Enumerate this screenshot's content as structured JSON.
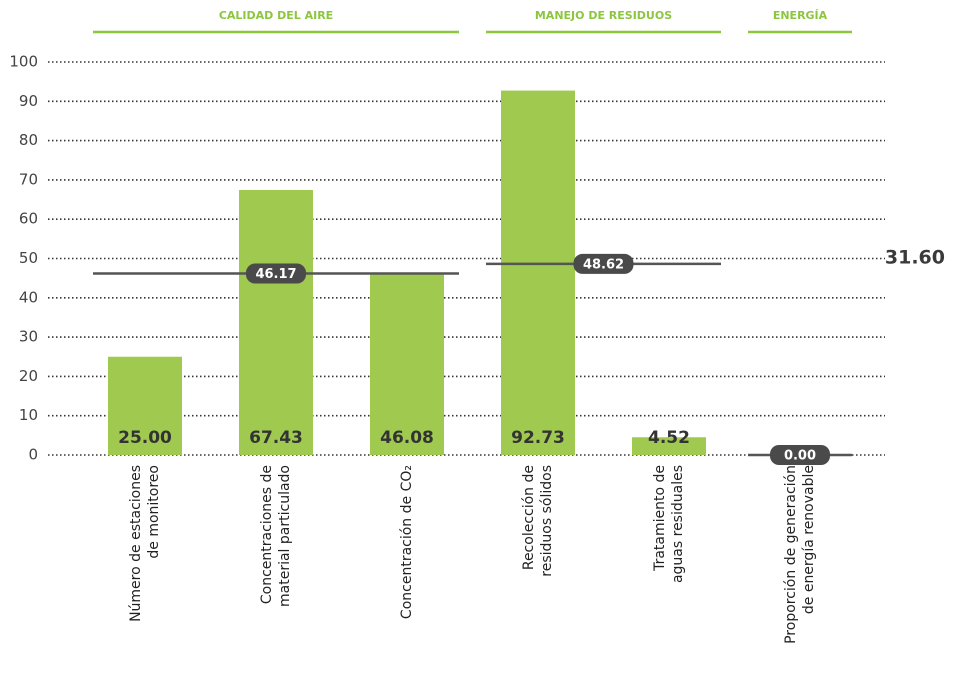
{
  "chart_data": {
    "type": "bar",
    "categories": [
      "Número de estaciones\nde monitoreo",
      "Concentraciones de\nmaterial particulado",
      "Concentración de CO₂",
      "Recolección de\nresiduos sólidos",
      "Tratamiento de\naguas residuales",
      "Proporción de generación\nde energía renovable"
    ],
    "values": [
      25.0,
      67.43,
      46.08,
      92.73,
      4.52,
      0.0
    ],
    "value_labels": [
      "25.00",
      "67.43",
      "46.08",
      "92.73",
      "4.52",
      null
    ],
    "color": "#9fc94f",
    "groups": [
      {
        "name": "CALIDAD DEL AIRE",
        "count": 3,
        "average": 46.17,
        "average_label": "46.17"
      },
      {
        "name": "MANEJO DE RESIDUOS",
        "count": 2,
        "average": 48.62,
        "average_label": "48.62"
      },
      {
        "name": "ENERGÍA",
        "count": 1,
        "average": 0.0,
        "average_label": "0.00"
      }
    ],
    "annotations": [
      "31.60"
    ],
    "ylim": [
      0,
      100
    ],
    "yticks": [
      0,
      10,
      20,
      30,
      40,
      50,
      60,
      70,
      80,
      90,
      100
    ],
    "grid": true
  }
}
